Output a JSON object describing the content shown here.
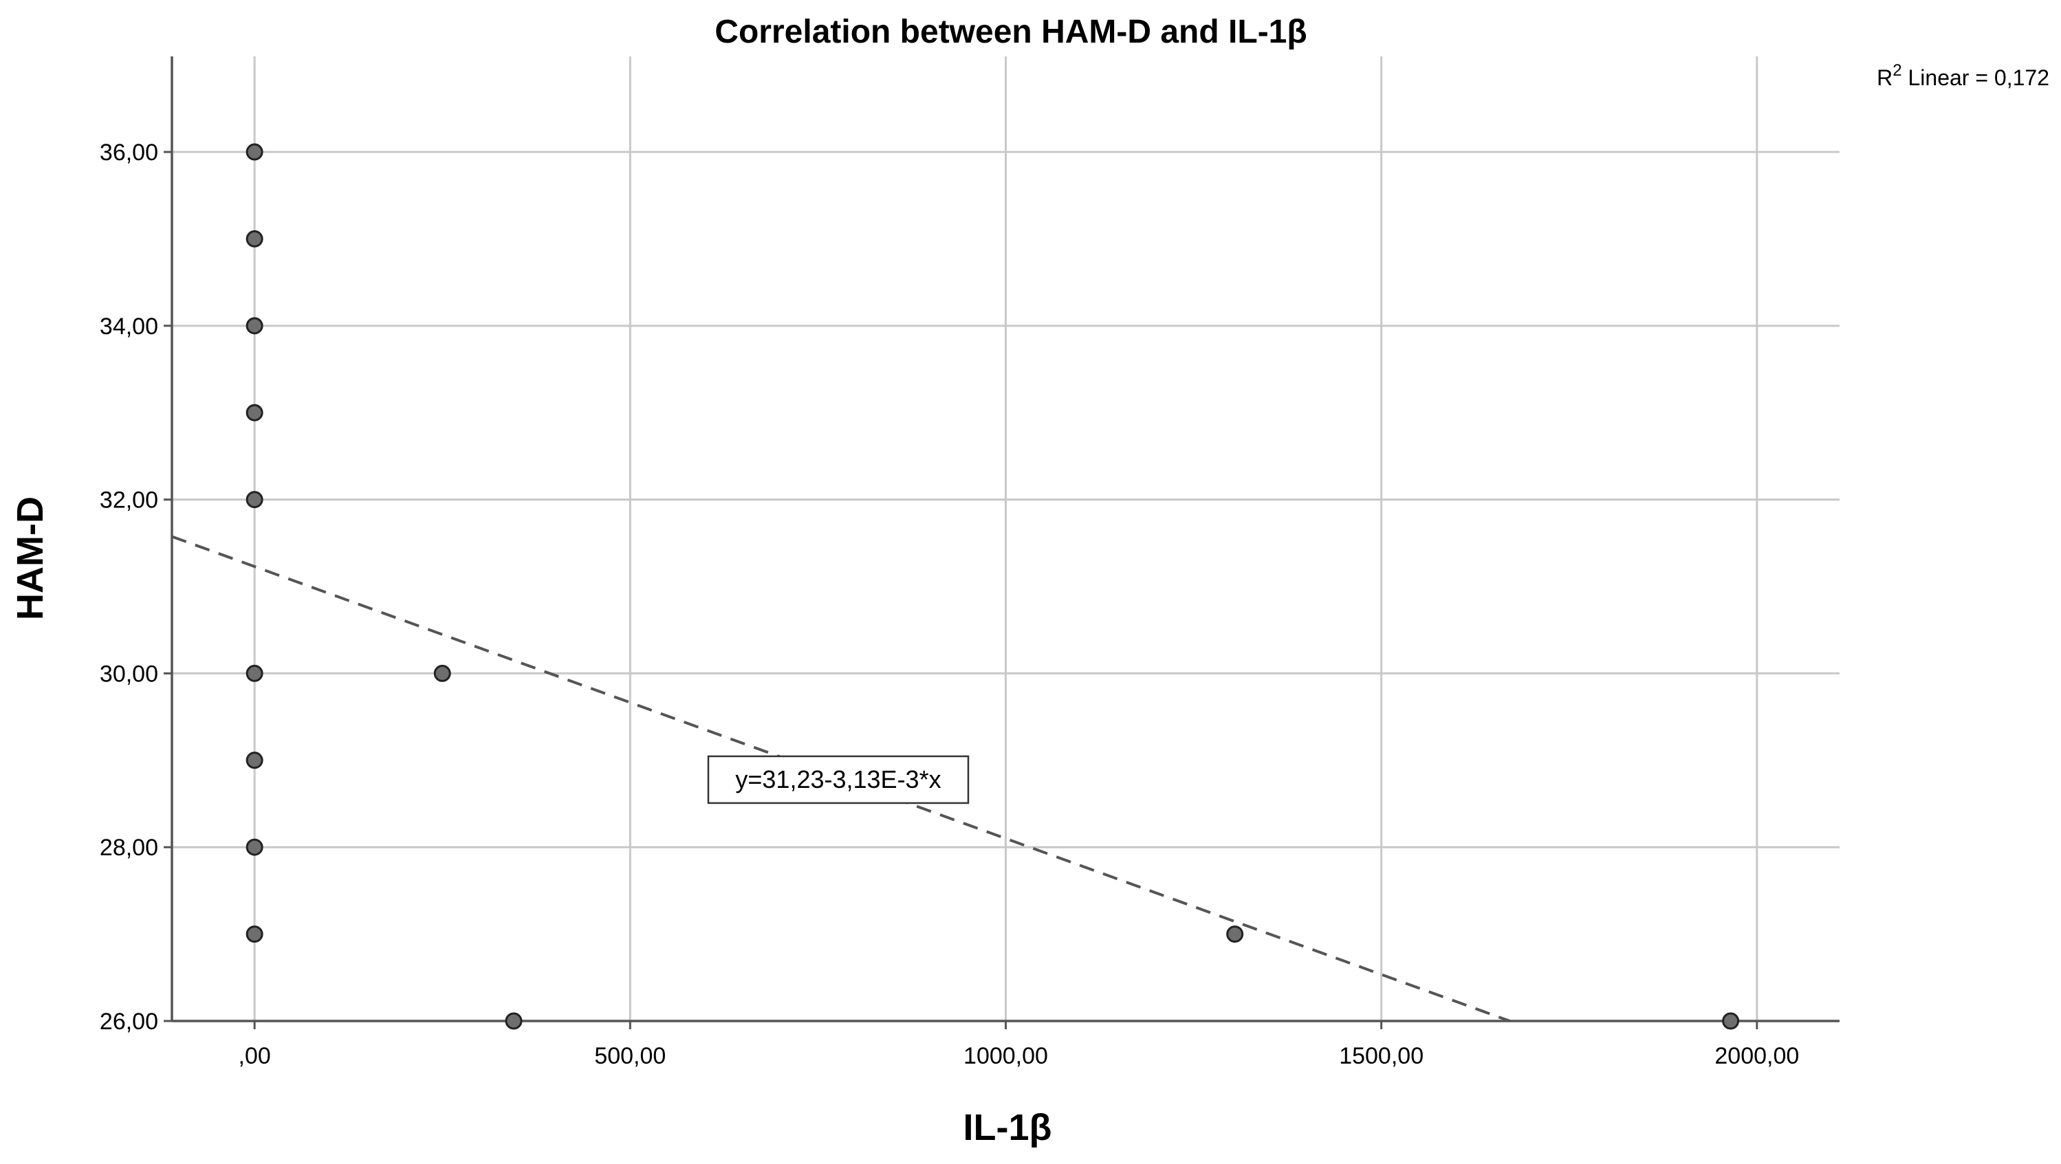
{
  "chart_data": {
    "type": "scatter",
    "title": "Correlation between HAM-D and IL-1β",
    "xlabel": "IL-1β",
    "ylabel": "HAM-D",
    "xlim": [
      -110,
      2110
    ],
    "ylim": [
      26,
      37.1
    ],
    "x_ticks": [
      {
        "value": 0,
        "label": ",00"
      },
      {
        "value": 500,
        "label": "500,00"
      },
      {
        "value": 1000,
        "label": "1000,00"
      },
      {
        "value": 1500,
        "label": "1500,00"
      },
      {
        "value": 2000,
        "label": "2000,00"
      }
    ],
    "y_ticks": [
      {
        "value": 26,
        "label": "26,00"
      },
      {
        "value": 28,
        "label": "28,00"
      },
      {
        "value": 30,
        "label": "30,00"
      },
      {
        "value": 32,
        "label": "32,00"
      },
      {
        "value": 34,
        "label": "34,00"
      },
      {
        "value": 36,
        "label": "36,00"
      }
    ],
    "grid": true,
    "points": [
      {
        "x": 0,
        "y": 36
      },
      {
        "x": 0,
        "y": 35
      },
      {
        "x": 0,
        "y": 34
      },
      {
        "x": 0,
        "y": 33
      },
      {
        "x": 0,
        "y": 32
      },
      {
        "x": 0,
        "y": 30
      },
      {
        "x": 0,
        "y": 29
      },
      {
        "x": 0,
        "y": 28
      },
      {
        "x": 0,
        "y": 27
      },
      {
        "x": 250,
        "y": 30
      },
      {
        "x": 345,
        "y": 26
      },
      {
        "x": 1305,
        "y": 27
      },
      {
        "x": 1965,
        "y": 26
      }
    ],
    "fit_line": {
      "intercept": 31.23,
      "slope": -0.00313,
      "equation_label": "y=31,23-3,13E-3*x",
      "style": "dashed"
    },
    "r2_label": {
      "prefix": "R",
      "superscript": "2",
      "suffix": " Linear = 0,172"
    },
    "colors": {
      "point_fill": "#6e6e6e",
      "point_stroke": "#222222",
      "grid": "#c8c8c8",
      "axis": "#555555",
      "fit_line": "#555555"
    }
  }
}
